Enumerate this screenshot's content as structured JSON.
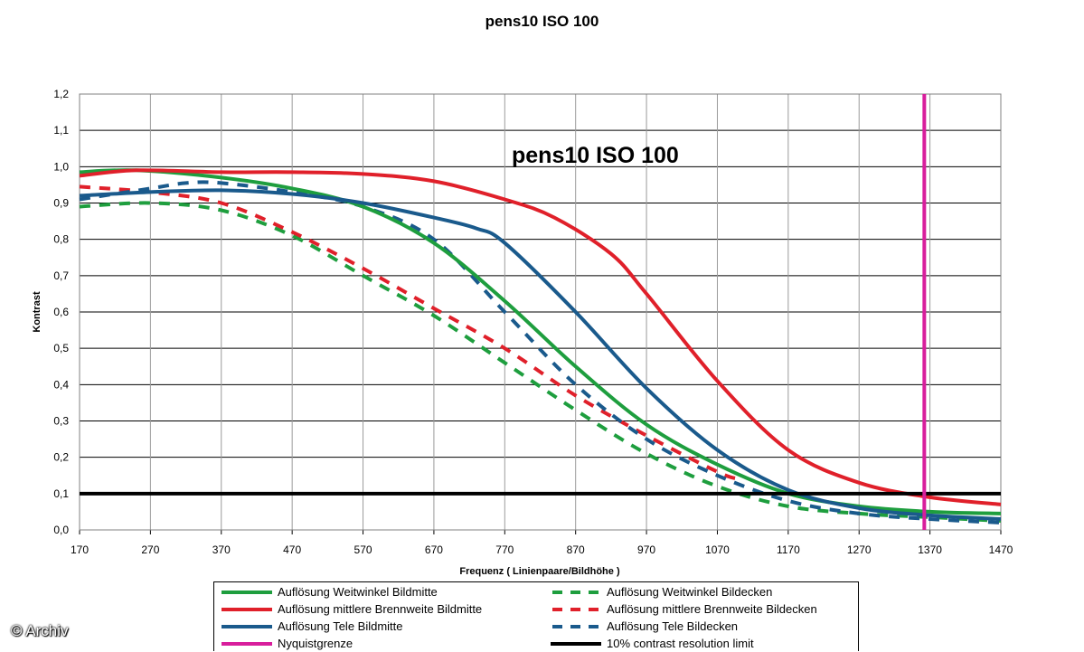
{
  "title": "pens10 ISO 100",
  "plot_title": "pens10 ISO 100",
  "watermark": "© Archiv",
  "chart_data": {
    "type": "line",
    "title": "pens10 ISO 100",
    "xlabel": "Frequenz ( Linienpaare/Bildhöhe )",
    "ylabel": "Kontrast",
    "xlim": [
      170,
      1470
    ],
    "ylim": [
      0,
      1.2
    ],
    "x_ticks": [
      "170",
      "270",
      "370",
      "470",
      "570",
      "670",
      "770",
      "870",
      "970",
      "1070",
      "1170",
      "1270",
      "1370",
      "1470"
    ],
    "y_ticks": [
      "0,0",
      "0,1",
      "0,2",
      "0,3",
      "0,4",
      "0,5",
      "0,6",
      "0,7",
      "0,8",
      "0,9",
      "1,0",
      "1,1",
      "1,2"
    ],
    "grid": "horizontal",
    "legend_position": "bottom",
    "series": [
      {
        "name": "Auflösung Weitwinkel Bildmitte",
        "color": "#1e9e3e",
        "dashed": false,
        "x": [
          170,
          250,
          370,
          470,
          570,
          670,
          770,
          870,
          970,
          1070,
          1170,
          1270,
          1370,
          1470
        ],
        "y": [
          0.985,
          0.99,
          0.97,
          0.94,
          0.89,
          0.79,
          0.63,
          0.45,
          0.29,
          0.18,
          0.1,
          0.065,
          0.05,
          0.045
        ]
      },
      {
        "name": "Auflösung mittlere Brennweite Bildmitte",
        "color": "#e0202a",
        "dashed": false,
        "x": [
          170,
          250,
          370,
          470,
          570,
          670,
          770,
          840,
          920,
          970,
          1070,
          1170,
          1270,
          1370,
          1470
        ],
        "y": [
          0.975,
          0.99,
          0.985,
          0.985,
          0.98,
          0.96,
          0.91,
          0.86,
          0.76,
          0.65,
          0.41,
          0.22,
          0.13,
          0.09,
          0.07
        ]
      },
      {
        "name": "Auflösung Tele Bildmitte",
        "color": "#1a5a8c",
        "dashed": false,
        "x": [
          170,
          270,
          370,
          470,
          570,
          670,
          730,
          770,
          870,
          970,
          1070,
          1170,
          1270,
          1370,
          1470
        ],
        "y": [
          0.92,
          0.93,
          0.935,
          0.925,
          0.9,
          0.86,
          0.83,
          0.79,
          0.6,
          0.39,
          0.22,
          0.11,
          0.06,
          0.04,
          0.03
        ]
      },
      {
        "name": "Nyquistgrenze",
        "color": "#d81e9c",
        "dashed": false,
        "x": [
          1362,
          1362
        ],
        "y": [
          0,
          1.2
        ]
      },
      {
        "name": "Auflösung Weitwinkel Bildecken",
        "color": "#1e9e3e",
        "dashed": true,
        "x": [
          170,
          270,
          370,
          470,
          570,
          670,
          770,
          870,
          970,
          1070,
          1170,
          1270,
          1370,
          1470
        ],
        "y": [
          0.89,
          0.9,
          0.88,
          0.81,
          0.7,
          0.59,
          0.46,
          0.33,
          0.21,
          0.12,
          0.065,
          0.045,
          0.035,
          0.025
        ]
      },
      {
        "name": "Auflösung mittlere Brennweite Bildecken",
        "color": "#e0202a",
        "dashed": true,
        "x": [
          170,
          270,
          370,
          470,
          570,
          670,
          770,
          870,
          970,
          1070,
          1100
        ],
        "y": [
          0.945,
          0.93,
          0.9,
          0.82,
          0.72,
          0.61,
          0.5,
          0.37,
          0.26,
          0.16,
          0.14
        ]
      },
      {
        "name": "Auflösung Tele Bildecken",
        "color": "#1a5a8c",
        "dashed": true,
        "x": [
          170,
          270,
          320,
          370,
          470,
          570,
          670,
          770,
          870,
          970,
          1070,
          1170,
          1270,
          1370,
          1470
        ],
        "y": [
          0.91,
          0.94,
          0.955,
          0.955,
          0.93,
          0.89,
          0.8,
          0.6,
          0.4,
          0.25,
          0.15,
          0.08,
          0.045,
          0.03,
          0.02
        ]
      },
      {
        "name": "10% contrast resolution limit",
        "color": "#000000",
        "dashed": false,
        "x": [
          170,
          1470
        ],
        "y": [
          0.1,
          0.1
        ]
      }
    ]
  },
  "legend": [
    {
      "label": "Auflösung Weitwinkel Bildmitte",
      "color": "#1e9e3e",
      "dashed": false
    },
    {
      "label": "Auflösung Weitwinkel Bildecken",
      "color": "#1e9e3e",
      "dashed": true
    },
    {
      "label": "Auflösung mittlere Brennweite Bildmitte",
      "color": "#e0202a",
      "dashed": false
    },
    {
      "label": "Auflösung mittlere Brennweite Bildecken",
      "color": "#e0202a",
      "dashed": true
    },
    {
      "label": "Auflösung Tele Bildmitte",
      "color": "#1a5a8c",
      "dashed": false
    },
    {
      "label": "Auflösung Tele Bildecken",
      "color": "#1a5a8c",
      "dashed": true
    },
    {
      "label": "Nyquistgrenze",
      "color": "#d81e9c",
      "dashed": false
    },
    {
      "label": "10% contrast resolution limit",
      "color": "#000000",
      "dashed": false
    }
  ]
}
